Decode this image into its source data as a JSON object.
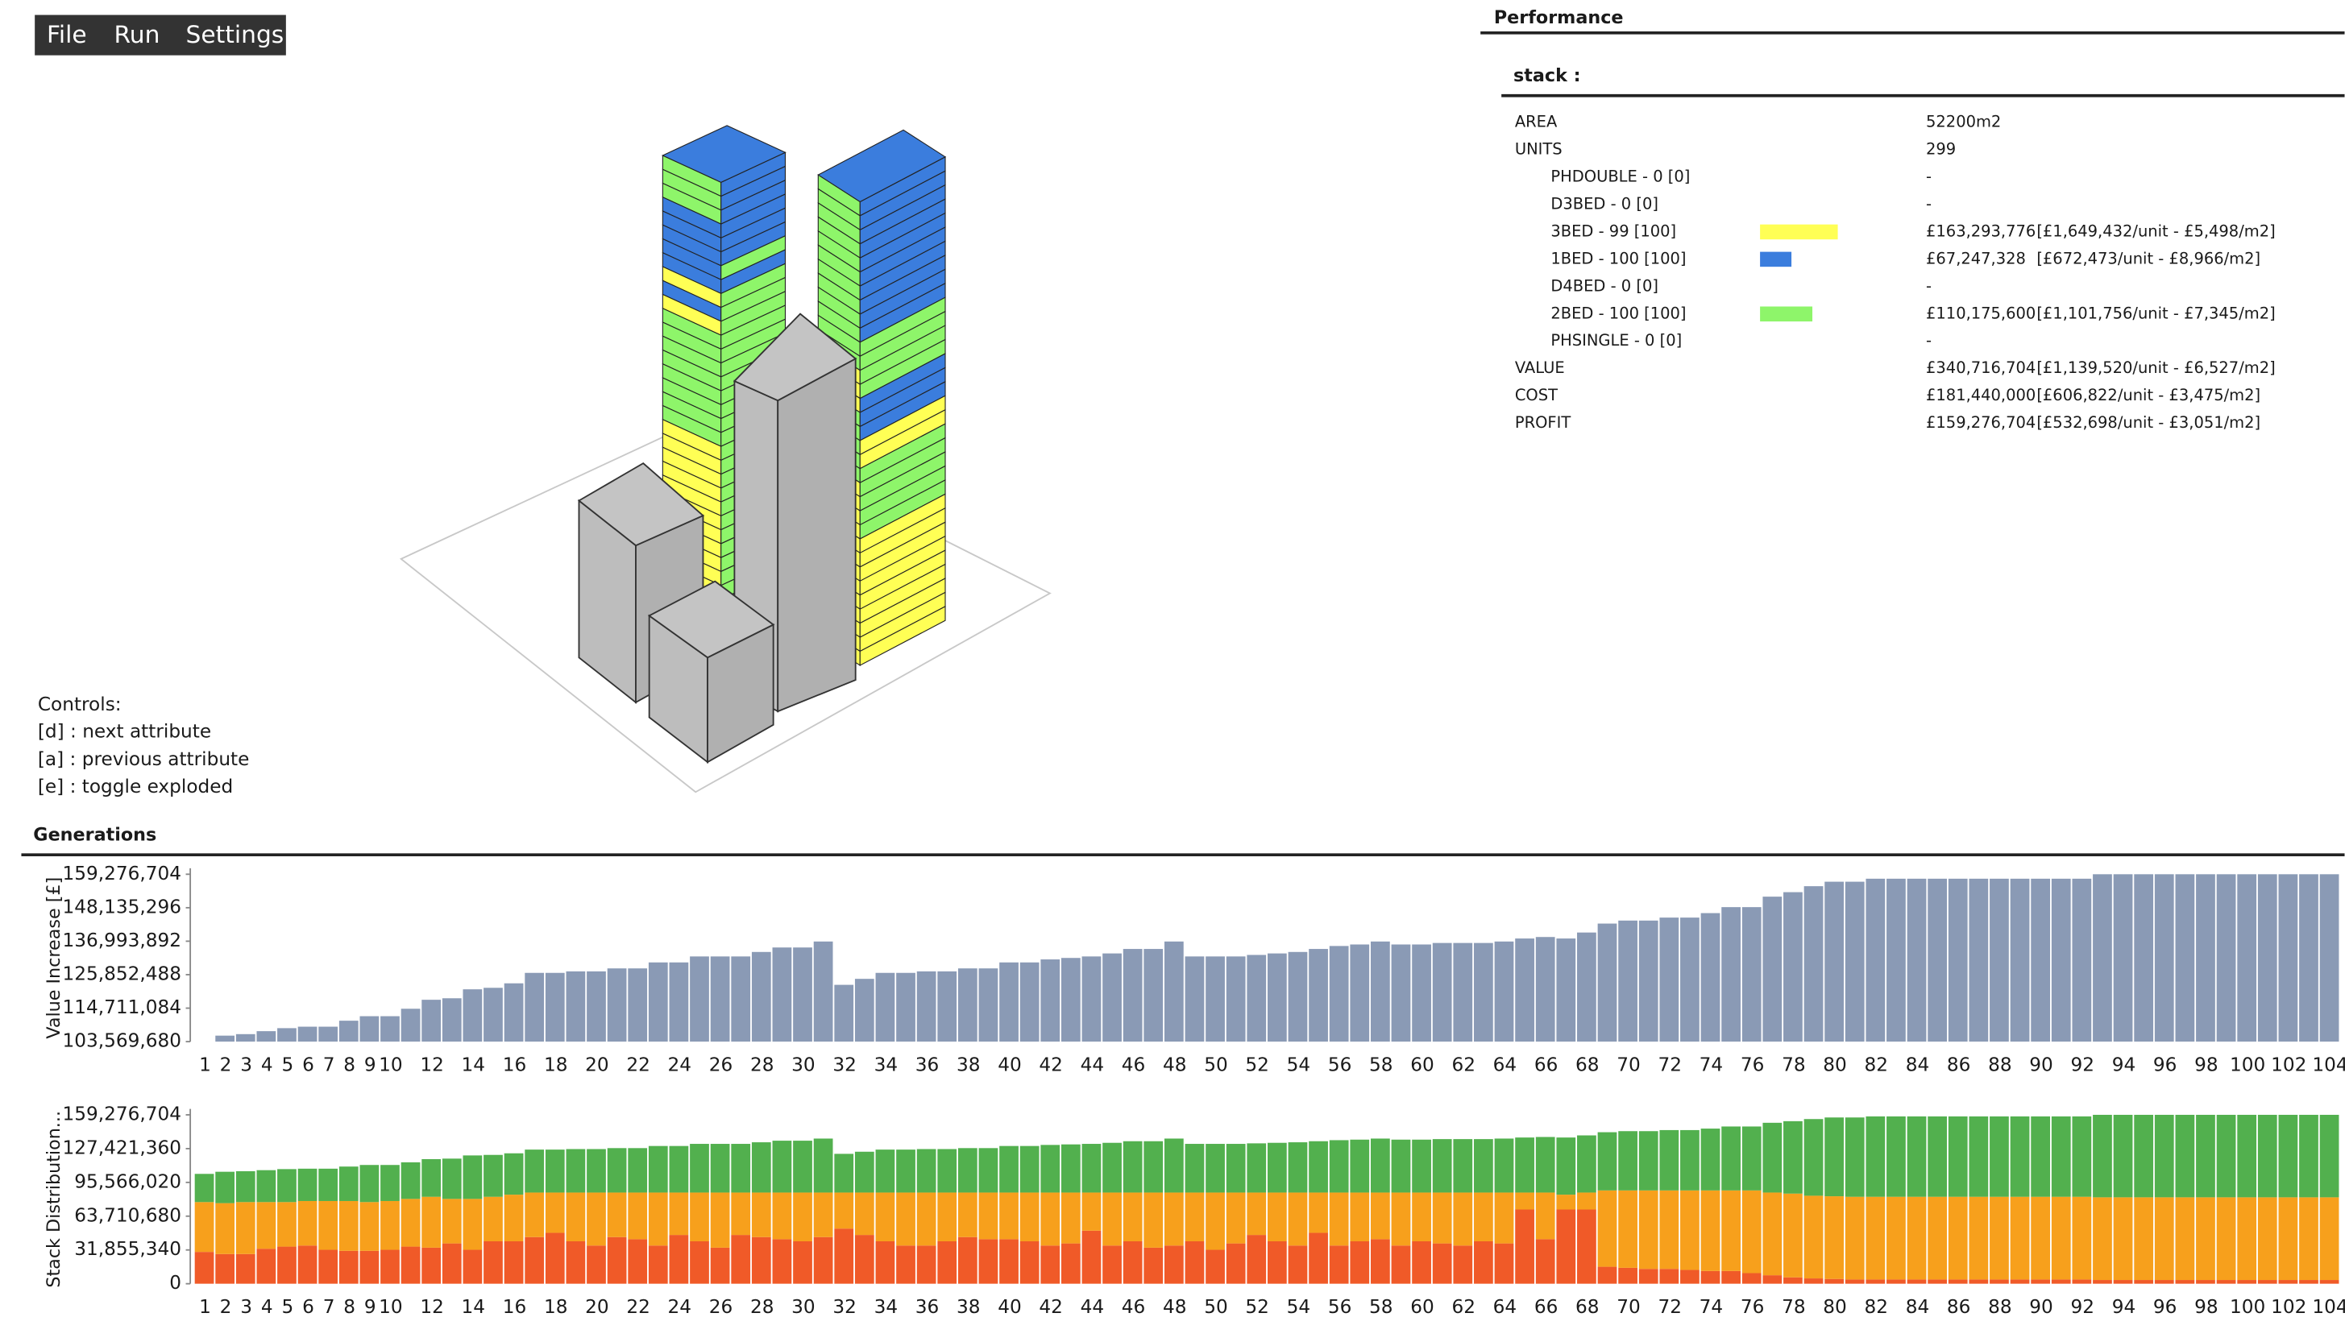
{
  "menu": [
    "File",
    "Run",
    "Settings"
  ],
  "performance": {
    "title": "Performance",
    "section": "stack :",
    "rows": [
      {
        "label": "AREA",
        "value": "52200m2"
      },
      {
        "label": "UNITS",
        "value": "299",
        "items": [
          {
            "label": "PHDOUBLE - 0 [0]",
            "value": "-"
          },
          {
            "label": "D3BED - 0 [0]",
            "value": "-"
          },
          {
            "label": "3BED - 99 [100]",
            "color": "#ffff55",
            "value": "£163,293,776",
            "detail": "[£1,649,432/unit - £5,498/m2]"
          },
          {
            "label": "1BED - 100 [100]",
            "color": "#3b7ddd",
            "value": "£67,247,328",
            "detail": "[£672,473/unit - £8,966/m2]"
          },
          {
            "label": "D4BED - 0 [0]",
            "value": "-"
          },
          {
            "label": "2BED - 100 [100]",
            "color": "#8ef56a",
            "value": "£110,175,600",
            "detail": "[£1,101,756/unit - £7,345/m2]"
          },
          {
            "label": "PHSINGLE - 0 [0]",
            "value": "-"
          }
        ]
      },
      {
        "label": "VALUE",
        "value": "£340,716,704",
        "detail": "[£1,139,520/unit - £6,527/m2]"
      },
      {
        "label": "COST",
        "value": "£181,440,000",
        "detail": "[£606,822/unit - £3,475/m2]"
      },
      {
        "label": "PROFIT",
        "value": "£159,276,704",
        "detail": "[£532,698/unit - £3,051/m2]"
      }
    ]
  },
  "controls": {
    "title": "Controls:",
    "lines": [
      "[d] : next attribute",
      "[a] : previous attribute",
      "[e] : toggle exploded"
    ]
  },
  "generations": {
    "title": "Generations",
    "charts": [
      {
        "type": "bar",
        "ylabel": "Value Increase [£]",
        "color": "#8a9ab5",
        "ylim": [
          103569680,
          159276704
        ],
        "yticks": [
          {
            "value": 103569680,
            "label": "103,569,680"
          },
          {
            "value": 114711084,
            "label": "114,711,084"
          },
          {
            "value": 125852488,
            "label": "125,852,488"
          },
          {
            "value": 136993892,
            "label": "136,993,892"
          },
          {
            "value": 148135296,
            "label": "148,135,296"
          },
          {
            "value": 159276704,
            "label": "159,276,704"
          }
        ],
        "categories": [
          1,
          2,
          3,
          4,
          5,
          6,
          7,
          8,
          9,
          10,
          null,
          12,
          null,
          14,
          null,
          16,
          null,
          18,
          null,
          20,
          null,
          22,
          null,
          24,
          null,
          26,
          null,
          28,
          null,
          30,
          null,
          32,
          null,
          34,
          null,
          36,
          null,
          38,
          null,
          40,
          null,
          42,
          null,
          44,
          null,
          46,
          null,
          48,
          null,
          50,
          null,
          52,
          null,
          54,
          null,
          56,
          null,
          58,
          null,
          60,
          null,
          62,
          null,
          64,
          null,
          66,
          null,
          68,
          null,
          70,
          null,
          72,
          null,
          74,
          null,
          76,
          null,
          78,
          null,
          80,
          null,
          82,
          null,
          84,
          null,
          86,
          null,
          88,
          null,
          90,
          null,
          92,
          null,
          94,
          null,
          96,
          null,
          98,
          null,
          100,
          null,
          102,
          null,
          104
        ],
        "values": [
          103569680,
          105560000,
          106060000,
          107050000,
          108050000,
          108540000,
          108540000,
          110530000,
          112030000,
          112030000,
          114510000,
          117500000,
          118000000,
          120980000,
          121480000,
          122970000,
          126450000,
          126450000,
          126950000,
          126950000,
          127940000,
          127940000,
          129930000,
          129930000,
          131920000,
          131920000,
          131920000,
          133410000,
          134900000,
          134900000,
          136890000,
          122470000,
          124460000,
          126450000,
          126450000,
          126950000,
          126950000,
          127940000,
          127940000,
          129930000,
          129930000,
          130930000,
          131420000,
          131920000,
          132920000,
          134410000,
          134410000,
          136890000,
          131920000,
          131920000,
          131920000,
          132420000,
          132920000,
          133410000,
          134410000,
          135400000,
          135900000,
          136890000,
          135900000,
          135900000,
          136400000,
          136400000,
          136400000,
          136890000,
          137890000,
          138390000,
          137890000,
          139880000,
          142860000,
          143860000,
          143860000,
          144850000,
          144850000,
          146340000,
          148330000,
          148330000,
          151820000,
          153310000,
          155300000,
          156790000,
          156790000,
          157790000,
          157790000,
          157790000,
          157790000,
          157790000,
          157790000,
          157790000,
          157790000,
          157790000,
          157790000,
          157790000,
          159276704,
          159276704,
          159276704,
          159276704,
          159276704,
          159276704,
          159276704,
          159276704,
          159276704,
          159276704,
          159276704,
          159276704
        ]
      },
      {
        "type": "stacked_bar",
        "ylabel": "Stack Distribution...",
        "ylim": [
          0,
          159276704
        ],
        "yticks": [
          0,
          {
            "value": 31855340,
            "label": "31,855,340"
          },
          {
            "value": 63710680,
            "label": "63,710,680"
          },
          {
            "value": 95566020,
            "label": "95,566,020"
          },
          {
            "value": 127421360,
            "label": "127,421,360"
          },
          {
            "value": 159276704,
            "label": "159,276,704"
          }
        ],
        "categories": [
          1,
          2,
          3,
          4,
          5,
          6,
          7,
          8,
          9,
          10,
          null,
          12,
          null,
          14,
          null,
          16,
          null,
          18,
          null,
          20,
          null,
          22,
          null,
          24,
          null,
          26,
          null,
          28,
          null,
          30,
          null,
          32,
          null,
          34,
          null,
          36,
          null,
          38,
          null,
          40,
          null,
          42,
          null,
          44,
          null,
          46,
          null,
          48,
          null,
          50,
          null,
          52,
          null,
          54,
          null,
          56,
          null,
          58,
          null,
          60,
          null,
          62,
          null,
          64,
          null,
          66,
          null,
          68,
          null,
          70,
          null,
          72,
          null,
          74,
          null,
          76,
          null,
          78,
          null,
          80,
          null,
          82,
          null,
          84,
          null,
          86,
          null,
          88,
          null,
          90,
          null,
          92,
          null,
          94,
          null,
          96,
          null,
          98,
          null,
          100,
          null,
          102,
          null,
          104
        ],
        "series": [
          {
            "color": "#f05a28",
            "values": [
              30000000,
              28000000,
              28000000,
              33000000,
              35000000,
              36000000,
              32000000,
              31000000,
              31000000,
              32000000,
              35000000,
              34000000,
              38000000,
              32000000,
              40000000,
              40000000,
              44000000,
              48000000,
              40000000,
              36000000,
              44000000,
              42000000,
              36000000,
              46000000,
              40000000,
              34000000,
              46000000,
              44000000,
              42000000,
              40000000,
              44000000,
              52000000,
              46000000,
              40000000,
              36000000,
              36000000,
              40000000,
              44000000,
              42000000,
              42000000,
              40000000,
              36000000,
              38000000,
              50000000,
              36000000,
              40000000,
              34000000,
              36000000,
              40000000,
              32000000,
              38000000,
              46000000,
              40000000,
              36000000,
              48000000,
              36000000,
              40000000,
              42000000,
              36000000,
              40000000,
              38000000,
              36000000,
              40000000,
              38000000,
              70000000,
              42000000,
              70000000,
              70000000,
              16000000,
              15000000,
              14000000,
              14000000,
              13000000,
              12000000,
              12000000,
              10000000,
              8000000,
              6000000,
              5000000,
              4500000,
              4000000,
              4000000,
              4000000,
              4000000,
              4000000,
              4000000,
              4000000,
              4000000,
              4000000,
              4000000,
              4000000,
              4000000,
              3500000,
              3500000,
              3500000,
              3500000,
              3500000,
              3500000,
              3500000,
              3500000,
              3500000,
              3500000,
              3500000,
              3500000
            ]
          },
          {
            "color": "#f7a01c",
            "values": [
              47000000,
              48000000,
              49000000,
              44000000,
              42000000,
              42000000,
              46000000,
              47000000,
              46000000,
              46000000,
              45000000,
              48000000,
              42000000,
              48000000,
              42000000,
              44000000,
              42000000,
              38000000,
              46000000,
              50000000,
              42000000,
              44000000,
              50000000,
              40000000,
              46000000,
              52000000,
              40000000,
              42000000,
              44000000,
              46000000,
              42000000,
              34000000,
              40000000,
              46000000,
              50000000,
              50000000,
              46000000,
              42000000,
              44000000,
              44000000,
              46000000,
              50000000,
              48000000,
              36000000,
              50000000,
              46000000,
              52000000,
              50000000,
              46000000,
              54000000,
              48000000,
              40000000,
              46000000,
              50000000,
              38000000,
              50000000,
              46000000,
              44000000,
              50000000,
              46000000,
              48000000,
              50000000,
              46000000,
              48000000,
              16000000,
              44000000,
              14000000,
              16000000,
              72000000,
              73000000,
              74000000,
              74000000,
              75000000,
              76000000,
              76000000,
              78000000,
              78000000,
              79000000,
              78000000,
              78000000,
              78000000,
              78000000,
              78000000,
              78000000,
              78000000,
              78000000,
              78000000,
              78000000,
              78000000,
              78000000,
              78000000,
              78000000,
              78000000,
              78000000,
              78000000,
              78000000,
              78000000,
              78000000,
              78000000,
              78000000,
              78000000,
              78000000,
              78000000,
              78000000
            ]
          },
          {
            "color": "#52b04e",
            "values": [
              26600000,
              29600000,
              29100000,
              30100000,
              31100000,
              30500000,
              30500000,
              32500000,
              35000000,
              34000000,
              34500000,
              35500000,
              38000000,
              41000000,
              39500000,
              39000000,
              40500000,
              40500000,
              41000000,
              41000000,
              41900000,
              41900000,
              43900000,
              43900000,
              45900000,
              45900000,
              45900000,
              47400000,
              48900000,
              48900000,
              50900000,
              36500000,
              38500000,
              40500000,
              40500000,
              41000000,
              41000000,
              41900000,
              41900000,
              43900000,
              43900000,
              44900000,
              45400000,
              45900000,
              46900000,
              48400000,
              48400000,
              50900000,
              45900000,
              45900000,
              45900000,
              46400000,
              46900000,
              47400000,
              48400000,
              49400000,
              49900000,
              50900000,
              49900000,
              49900000,
              50400000,
              50400000,
              50400000,
              50900000,
              51900000,
              52400000,
              53900000,
              53900000,
              54900000,
              55900000,
              55900000,
              56900000,
              56900000,
              58300000,
              60300000,
              60300000,
              65800000,
              68300000,
              72300000,
              74300000,
              74800000,
              75800000,
              75800000,
              75800000,
              75800000,
              75800000,
              75800000,
              75800000,
              75800000,
              75800000,
              75800000,
              75800000,
              77800000,
              77800000,
              77800000,
              77800000,
              77800000,
              77800000,
              77800000,
              77800000,
              77800000,
              77800000,
              77800000,
              77800000
            ]
          }
        ]
      }
    ]
  }
}
